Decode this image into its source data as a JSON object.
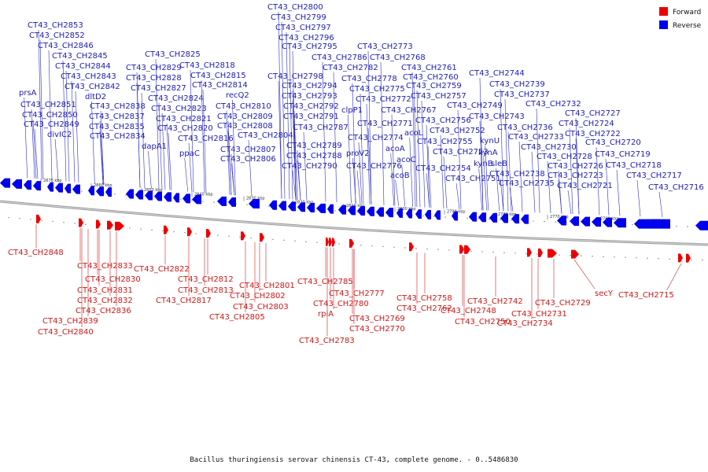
{
  "caption": "Bacillus thuringiensis serovar chinensis CT-43, complete genome. - 0..5486830",
  "legend": [
    {
      "label": "Forward",
      "color": "#ee0000"
    },
    {
      "label": "Reverse",
      "color": "#0000ee"
    }
  ],
  "colors": {
    "forward": "#ee0000",
    "reverse": "#0000ee",
    "backbone": "#8a8a8a"
  },
  "ticks": [
    "2870 kbp",
    "2860 kbp",
    "2850 kbp",
    "2840 kbp",
    "2830 kbp",
    "2820 kbp",
    "2810 kbp",
    "2800 kbp",
    "2790 kbp",
    "2780 kbp",
    "2770 kbp",
    "2760 kbp",
    "2750 kbp"
  ],
  "reverse_labels": [
    "CT43_CH2853",
    "CT43_CH2852",
    "CT43_CH2846",
    "CT43_CH2845",
    "CT43_CH2844",
    "CT43_CH2843",
    "CT43_CH2842",
    "dltD2",
    "prsA",
    "CT43_CH2851",
    "CT43_CH2850",
    "CT43_CH2849",
    "divIC2",
    "CT43_CH2838",
    "CT43_CH2837",
    "CT43_CH2835",
    "CT43_CH2834",
    "CT43_CH2825",
    "CT43_CH2829",
    "CT43_CH2828",
    "CT43_CH2827",
    "CT43_CH2824",
    "CT43_CH2823",
    "CT43_CH2821",
    "CT43_CH2820",
    "dapA1",
    "ppaC",
    "CT43_CH2816",
    "CT43_CH2818",
    "CT43_CH2815",
    "CT43_CH2814",
    "recQ2",
    "CT43_CH2810",
    "CT43_CH2809",
    "CT43_CH2808",
    "CT43_CH2804",
    "CT43_CH2807",
    "CT43_CH2806",
    "CT43_CH2800",
    "CT43_CH2799",
    "CT43_CH2797",
    "CT43_CH2796",
    "CT43_CH2795",
    "CT43_CH2798",
    "CT43_CH2794",
    "CT43_CH2793",
    "CT43_CH2792",
    "CT43_CH2791",
    "CT43_CH2787",
    "CT43_CH2789",
    "CT43_CH2788",
    "CT43_CH2790",
    "CT43_CH2773",
    "CT43_CH2786",
    "CT43_CH2768",
    "CT43_CH2782",
    "CT43_CH2778",
    "CT43_CH2775",
    "CT43_CH2772",
    "clpP1",
    "CT43_CH2771",
    "CT43_CH2774",
    "proV2",
    "CT43_CH2776",
    "acoA",
    "acoC",
    "acoB",
    "CT43_CH2761",
    "CT43_CH2760",
    "CT43_CH2759",
    "CT43_CH2757",
    "CT43_CH2767",
    "acoL",
    "CT43_CH2756",
    "CT43_CH2752",
    "CT43_CH2755",
    "CT43_CH2753",
    "CT43_CH2754",
    "CT43_CH2751",
    "CT43_CH2744",
    "CT43_CH2739",
    "CT43_CH2737",
    "CT43_CH2749",
    "CT43_CH2743",
    "kynU",
    "kynA",
    "kynB",
    "sleB",
    "CT43_CH2738",
    "CT43_CH2735",
    "CT43_CH2732",
    "CT43_CH2736",
    "CT43_CH2733",
    "CT43_CH2730",
    "CT43_CH2728",
    "CT43_CH2726",
    "CT43_CH2727",
    "CT43_CH2724",
    "CT43_CH2722",
    "CT43_CH2720",
    "CT43_CH2719",
    "CT43_CH2718",
    "CT43_CH2723",
    "CT43_CH2721",
    "CT43_CH2717",
    "CT43_CH2716"
  ],
  "forward_labels": [
    "CT43_CH2848",
    "CT43_CH2833",
    "CT43_CH2830",
    "CT43_CH2831",
    "CT43_CH2832",
    "CT43_CH2836",
    "CT43_CH2839",
    "CT43_CH2840",
    "CT43_CH2822",
    "CT43_CH2812",
    "CT43_CH2813",
    "CT43_CH2817",
    "CT43_CH2801",
    "CT43_CH2802",
    "CT43_CH2803",
    "CT43_CH2805",
    "CT43_CH2785",
    "CT43_CH2777",
    "CT43_CH2780",
    "rpiA",
    "CT43_CH2769",
    "CT43_CH2770",
    "CT43_CH2783",
    "CT43_CH2758",
    "CT43_CH2762",
    "CT43_CH2748",
    "CT43_CH2750",
    "CT43_CH2742",
    "CT43_CH2731",
    "CT43_CH2734",
    "CT43_CH2729",
    "secY",
    "CT43_CH2715"
  ]
}
